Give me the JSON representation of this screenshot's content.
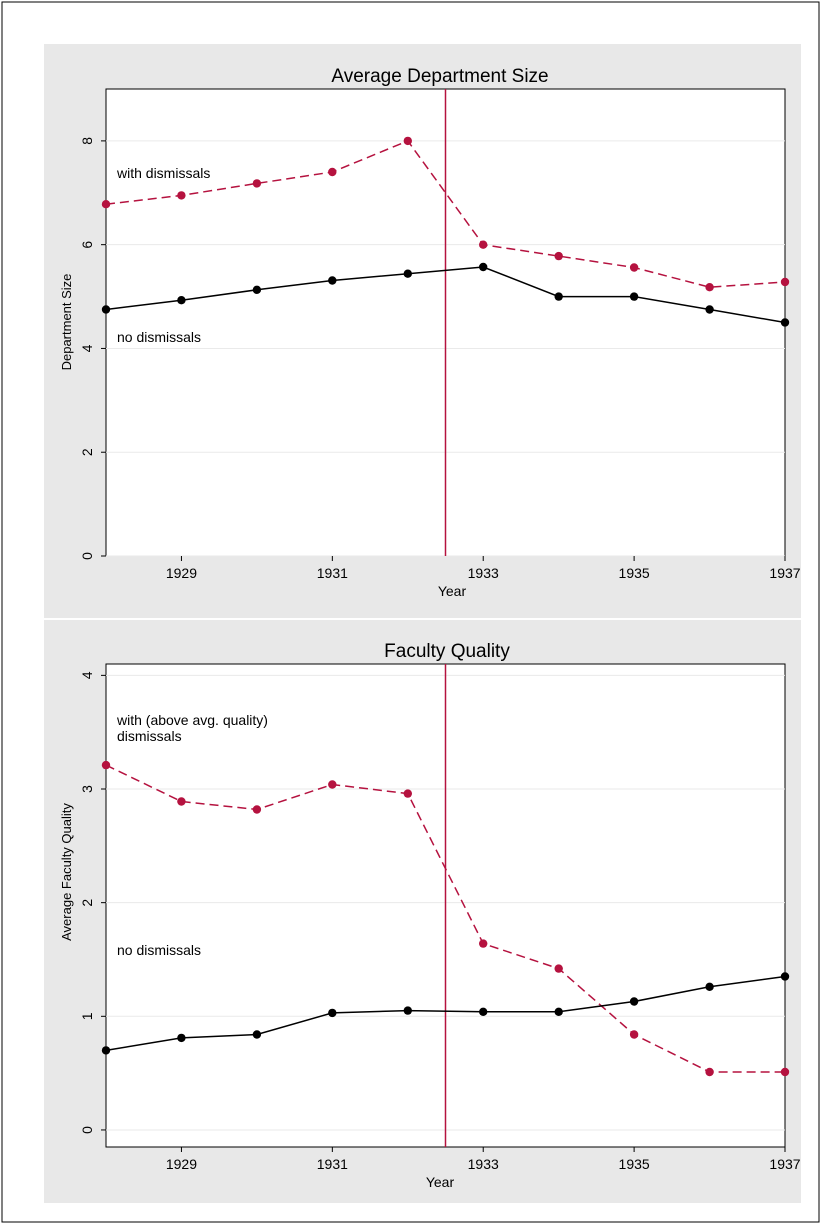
{
  "chart_data": [
    {
      "type": "line",
      "title": "Average Department Size",
      "xlabel": "Year",
      "ylabel": "Department Size",
      "xlim": [
        1928,
        1937
      ],
      "ylim": [
        0,
        9
      ],
      "xticks": [
        1929,
        1931,
        1933,
        1935,
        1937
      ],
      "yticks": [
        0,
        2,
        4,
        6,
        8
      ],
      "vline_x": 1932.5,
      "grid": true,
      "x": [
        1928,
        1929,
        1930,
        1931,
        1932,
        1933,
        1934,
        1935,
        1936,
        1937
      ],
      "series": [
        {
          "name": "with dismissals",
          "color": "#b5123f",
          "dashed": true,
          "values": [
            6.78,
            6.95,
            7.18,
            7.4,
            8.0,
            6.0,
            5.78,
            5.56,
            5.18,
            5.28
          ]
        },
        {
          "name": "no dismissals",
          "color": "#000000",
          "dashed": false,
          "values": [
            4.75,
            4.93,
            5.13,
            5.31,
            5.44,
            5.57,
            5.0,
            5.0,
            4.75,
            4.5
          ]
        }
      ],
      "annotations": [
        "with dismissals",
        "no dismissals"
      ]
    },
    {
      "type": "line",
      "title": "Faculty Quality",
      "xlabel": "Year",
      "ylabel": "Average Faculty Quality",
      "xlim": [
        1928,
        1937
      ],
      "ylim": [
        -0.15,
        4.1
      ],
      "xticks": [
        1929,
        1931,
        1933,
        1935,
        1937
      ],
      "yticks": [
        0,
        1,
        2,
        3,
        4
      ],
      "vline_x": 1932.5,
      "grid": true,
      "x": [
        1928,
        1929,
        1930,
        1931,
        1932,
        1933,
        1934,
        1935,
        1936,
        1937
      ],
      "series": [
        {
          "name": "with (above avg. quality) dismissals",
          "color": "#b5123f",
          "dashed": true,
          "values": [
            3.21,
            2.89,
            2.82,
            3.04,
            2.96,
            1.64,
            1.42,
            0.84,
            0.51,
            0.51
          ]
        },
        {
          "name": "no dismissals",
          "color": "#000000",
          "dashed": false,
          "values": [
            0.7,
            0.81,
            0.84,
            1.03,
            1.05,
            1.04,
            1.04,
            1.13,
            1.26,
            1.35
          ]
        }
      ],
      "annotations": [
        "with (above avg. quality)",
        "dismissals",
        "no dismissals"
      ]
    }
  ]
}
